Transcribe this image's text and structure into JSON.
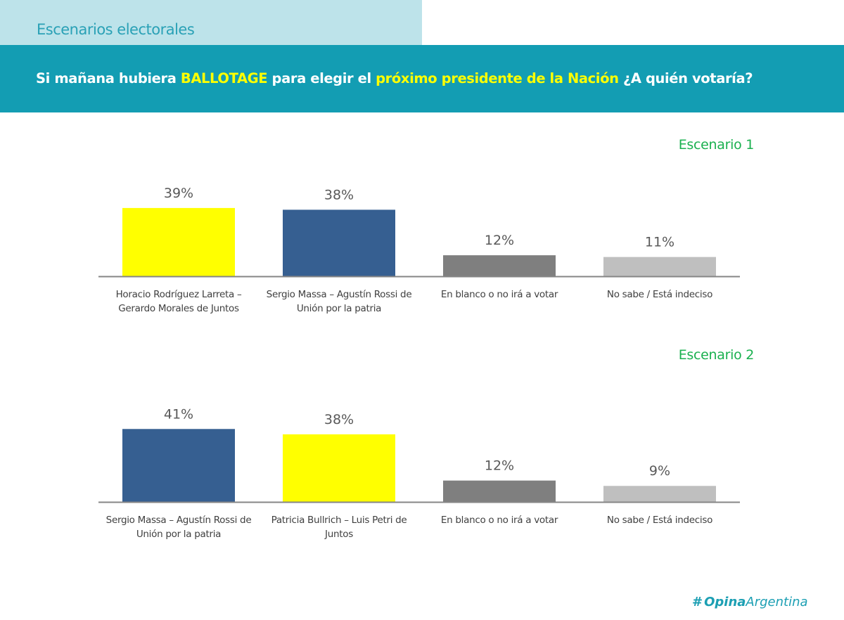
{
  "header": {
    "section_title": "Escenarios electorales",
    "question_parts": [
      {
        "text": "Si mañana hubiera ",
        "highlight": false
      },
      {
        "text": "BALLOTAGE",
        "highlight": true
      },
      {
        "text": " para elegir el ",
        "highlight": false
      },
      {
        "text": "próximo presidente de la Nación",
        "highlight": true
      },
      {
        "text": " ¿A quién votaría?",
        "highlight": false
      }
    ]
  },
  "colors": {
    "section_tab_bg": "#bde3ea",
    "banner_bg": "#139db3",
    "highlight": "#ffff00",
    "scenario_label": "#1ab04f",
    "yellow": "#ffff00",
    "blue": "#365f91",
    "dark_gray": "#7f7f7f",
    "light_gray": "#bfbfbf"
  },
  "chart_data": [
    {
      "type": "bar",
      "title": "Escenario 1",
      "xlabel": "",
      "ylabel": "",
      "ylim": [
        0,
        45
      ],
      "grid": false,
      "categories": [
        [
          "Horacio Rodríguez Larreta –",
          "Gerardo Morales de Juntos"
        ],
        [
          "Sergio Massa – Agustín Rossi de",
          "Unión por la patria"
        ],
        [
          "En blanco o no irá a votar"
        ],
        [
          "No sabe / Está indeciso"
        ]
      ],
      "values": [
        39,
        38,
        12,
        11
      ],
      "labels": [
        "39%",
        "38%",
        "12%",
        "11%"
      ],
      "colors": [
        "#ffff00",
        "#365f91",
        "#7f7f7f",
        "#bfbfbf"
      ]
    },
    {
      "type": "bar",
      "title": "Escenario 2",
      "xlabel": "",
      "ylabel": "",
      "ylim": [
        0,
        45
      ],
      "grid": false,
      "categories": [
        [
          "Sergio Massa – Agustín Rossi de",
          "Unión por la patria"
        ],
        [
          "Patricia Bullrich – Luis Petri de",
          "Juntos"
        ],
        [
          "En blanco o no irá a votar"
        ],
        [
          "No sabe / Está indeciso"
        ]
      ],
      "values": [
        41,
        38,
        12,
        9
      ],
      "labels": [
        "41%",
        "38%",
        "12%",
        "9%"
      ],
      "colors": [
        "#365f91",
        "#ffff00",
        "#7f7f7f",
        "#bfbfbf"
      ]
    }
  ],
  "footer": {
    "logo_mark": "#",
    "logo_bold": "Opina",
    "logo_rest": "Argentina"
  }
}
